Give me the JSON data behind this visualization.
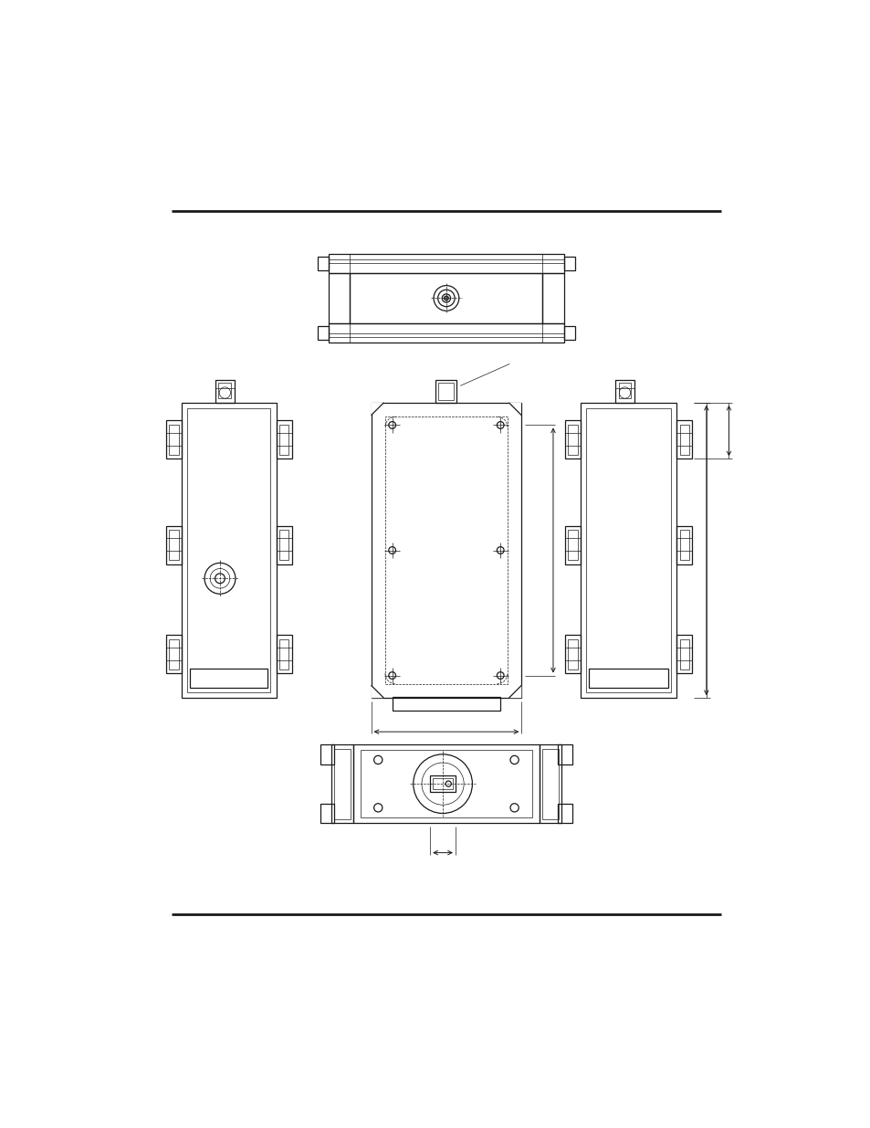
{
  "bg_color": "#ffffff",
  "line_color": "#1a1a1a",
  "lw": 0.9,
  "tlw": 0.5,
  "thk": 2.0,
  "page_width": 9.54,
  "page_height": 12.35
}
